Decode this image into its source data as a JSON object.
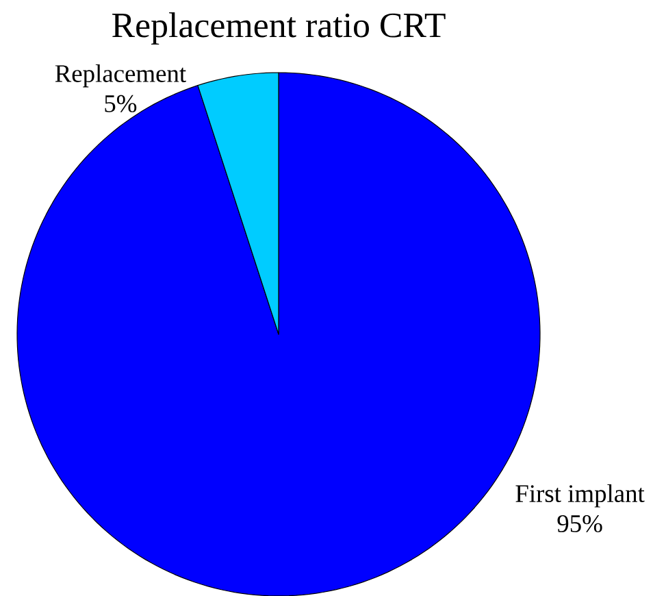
{
  "chart_data": {
    "type": "pie",
    "title": "Replacement ratio CRT",
    "categories": [
      "First implant",
      "Replacement"
    ],
    "values": [
      95,
      5
    ],
    "colors": [
      "#0000ff",
      "#00ccff"
    ],
    "value_labels": [
      "95%",
      "5%"
    ]
  }
}
